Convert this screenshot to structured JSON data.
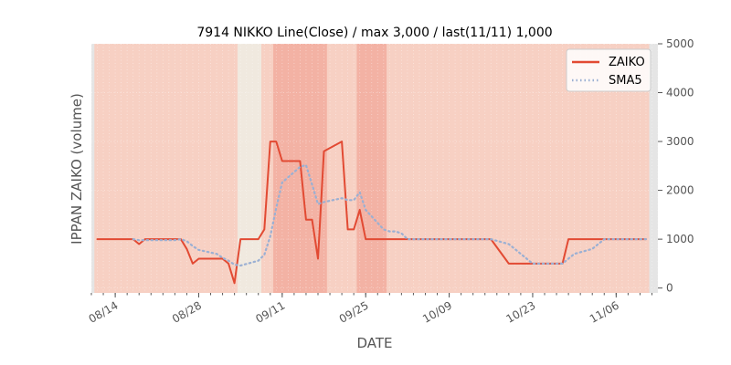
{
  "chart_data": {
    "type": "line",
    "title": "7914 NIKKO Line(Close) / max 3,000 / last(11/11) 1,000",
    "xlabel": "DATE",
    "ylabel": "IPPAN ZAIKO (volume)",
    "ylim": [
      -100,
      5000
    ],
    "y_ticks": [
      "0",
      "1000",
      "2000",
      "3000",
      "4000",
      "5000"
    ],
    "y_tick_values": [
      0,
      1000,
      2000,
      3000,
      4000,
      5000
    ],
    "y_axis_side": "right",
    "x_range": [
      "2020-08-10",
      "2020-11-13"
    ],
    "x_ticks": [
      "08/14",
      "08/28",
      "09/11",
      "09/25",
      "10/09",
      "10/23",
      "11/06"
    ],
    "x_tick_dates": [
      "2020-08-14",
      "2020-08-28",
      "2020-09-11",
      "2020-09-25",
      "2020-10-09",
      "2020-10-23",
      "2020-11-06"
    ],
    "grid": true,
    "legend_position": "top-right",
    "colors": {
      "plot_background": "#e5e5e5",
      "band_base": "#f7d0c3",
      "band_highlight": "#f2a89a",
      "band_pale": "#efeae0",
      "zaiko_line": "#e24a33",
      "sma5_line": "#9bb0d3"
    },
    "series": [
      {
        "name": "ZAIKO",
        "style": "solid",
        "x": [
          "2020-08-11",
          "2020-08-12",
          "2020-08-13",
          "2020-08-14",
          "2020-08-17",
          "2020-08-18",
          "2020-08-19",
          "2020-08-20",
          "2020-08-21",
          "2020-08-24",
          "2020-08-25",
          "2020-08-26",
          "2020-08-27",
          "2020-08-28",
          "2020-08-31",
          "2020-09-01",
          "2020-09-02",
          "2020-09-03",
          "2020-09-04",
          "2020-09-07",
          "2020-09-08",
          "2020-09-09",
          "2020-09-10",
          "2020-09-11",
          "2020-09-14",
          "2020-09-15",
          "2020-09-16",
          "2020-09-17",
          "2020-09-18",
          "2020-09-21",
          "2020-09-22",
          "2020-09-23",
          "2020-09-24",
          "2020-09-25",
          "2020-09-28",
          "2020-09-29",
          "2020-09-30",
          "2020-10-01",
          "2020-10-02",
          "2020-10-05",
          "2020-10-06",
          "2020-10-07",
          "2020-10-08",
          "2020-10-09",
          "2020-10-12",
          "2020-10-13",
          "2020-10-14",
          "2020-10-15",
          "2020-10-16",
          "2020-10-19",
          "2020-10-20",
          "2020-10-21",
          "2020-10-22",
          "2020-10-23",
          "2020-10-26",
          "2020-10-27",
          "2020-10-28",
          "2020-10-29",
          "2020-10-30",
          "2020-11-02",
          "2020-11-03",
          "2020-11-04",
          "2020-11-05",
          "2020-11-06",
          "2020-11-09",
          "2020-11-10",
          "2020-11-11"
        ],
        "values": [
          1000,
          1000,
          1000,
          1000,
          1000,
          900,
          1000,
          1000,
          1000,
          1000,
          1000,
          800,
          500,
          600,
          600,
          600,
          500,
          100,
          1000,
          1000,
          1200,
          3000,
          3000,
          2600,
          2600,
          1400,
          1400,
          600,
          2800,
          3000,
          1200,
          1200,
          1600,
          1000,
          1000,
          1000,
          1000,
          1000,
          1000,
          1000,
          1000,
          1000,
          1000,
          1000,
          1000,
          1000,
          1000,
          1000,
          1000,
          500,
          500,
          500,
          500,
          500,
          500,
          500,
          500,
          1000,
          1000,
          1000,
          1000,
          1000,
          1000,
          1000,
          1000,
          1000,
          1000
        ]
      },
      {
        "name": "SMA5",
        "style": "dotted",
        "x": [
          "2020-08-17",
          "2020-08-18",
          "2020-08-19",
          "2020-08-20",
          "2020-08-21",
          "2020-08-24",
          "2020-08-25",
          "2020-08-26",
          "2020-08-27",
          "2020-08-28",
          "2020-08-31",
          "2020-09-01",
          "2020-09-02",
          "2020-09-03",
          "2020-09-04",
          "2020-09-07",
          "2020-09-08",
          "2020-09-09",
          "2020-09-10",
          "2020-09-11",
          "2020-09-14",
          "2020-09-15",
          "2020-09-16",
          "2020-09-17",
          "2020-09-18",
          "2020-09-21",
          "2020-09-22",
          "2020-09-23",
          "2020-09-24",
          "2020-09-25",
          "2020-09-28",
          "2020-09-29",
          "2020-09-30",
          "2020-10-01",
          "2020-10-02",
          "2020-10-05",
          "2020-10-06",
          "2020-10-07",
          "2020-10-08",
          "2020-10-09",
          "2020-10-12",
          "2020-10-13",
          "2020-10-14",
          "2020-10-15",
          "2020-10-16",
          "2020-10-19",
          "2020-10-20",
          "2020-10-21",
          "2020-10-22",
          "2020-10-23",
          "2020-10-26",
          "2020-10-27",
          "2020-10-28",
          "2020-10-29",
          "2020-10-30",
          "2020-11-02",
          "2020-11-03",
          "2020-11-04",
          "2020-11-05",
          "2020-11-06",
          "2020-11-09",
          "2020-11-10",
          "2020-11-11"
        ],
        "values": [
          1000,
          980,
          980,
          980,
          980,
          980,
          1000,
          960,
          860,
          780,
          700,
          620,
          560,
          480,
          460,
          560,
          680,
          1060,
          1640,
          2160,
          2480,
          2520,
          2120,
          1720,
          1760,
          1840,
          1800,
          1800,
          1960,
          1600,
          1200,
          1160,
          1160,
          1120,
          1000,
          1000,
          1000,
          1000,
          1000,
          1000,
          1000,
          1000,
          1000,
          1000,
          1000,
          900,
          800,
          700,
          600,
          500,
          500,
          500,
          500,
          600,
          700,
          800,
          900,
          1000,
          1000,
          1000,
          1000,
          1000,
          1000
        ]
      }
    ],
    "highlight_bands": [
      {
        "start": "2020-09-04",
        "end": "2020-09-07",
        "tone": "pale"
      },
      {
        "start": "2020-09-10",
        "end": "2020-09-18",
        "tone": "highlight"
      },
      {
        "start": "2020-09-24",
        "end": "2020-09-28",
        "tone": "highlight"
      }
    ]
  }
}
